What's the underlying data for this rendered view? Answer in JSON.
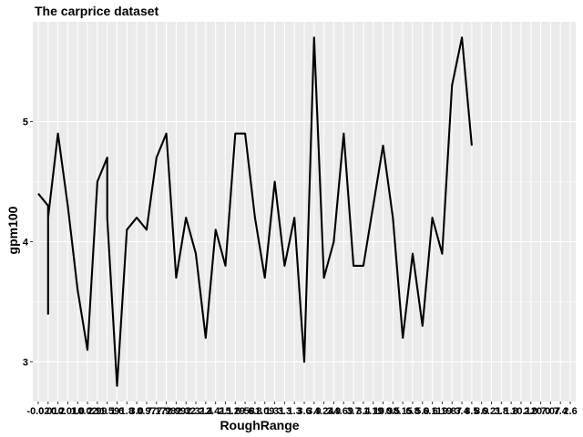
{
  "chart_data": {
    "type": "line",
    "title": "The carprice dataset",
    "xlabel": "RoughRange",
    "ylabel": "gpm100",
    "x_tick_labels": [
      "-0.02",
      "0.01",
      "0.2",
      "0.01",
      "1.0",
      "0.02",
      "2.99",
      "11.59",
      "1.6",
      "1.8",
      "3.0",
      "0.97",
      "7.17",
      "7.98",
      "2.99",
      "2.32",
      "2.31",
      "2.4",
      "2.41",
      "2.1",
      "5.29",
      "6.58",
      "6.8",
      "1.09",
      "1.31",
      "3.3",
      "1.3",
      "3.6",
      "3.9",
      "4.24",
      "3.9",
      "4.69",
      "3.7",
      "3.4",
      "1.19",
      "10.9",
      "0.5",
      "8.15",
      "6.8",
      "5.0",
      "6.11",
      "6.19",
      "9.87",
      "3.4",
      "8.5",
      "8.9",
      "6.21",
      "3.8",
      "1.8",
      "10.1",
      "2.0",
      "20.0",
      "7.07",
      "7.4",
      "2.6"
    ],
    "x": [
      -0.02,
      0.01,
      0.2,
      0.01,
      1.0,
      0.02,
      2.99,
      11.59,
      1.6,
      1.8,
      3.0,
      0.97,
      7.17,
      7.98,
      2.99,
      2.32,
      2.31,
      2.4,
      2.41,
      2.1,
      5.29,
      6.58,
      6.8,
      1.09,
      1.31,
      3.3,
      1.3,
      3.6,
      3.9,
      4.24,
      3.9,
      4.69,
      3.7,
      3.4,
      1.19,
      10.9,
      0.5,
      8.15,
      6.8,
      5.0,
      6.11,
      6.19,
      9.87,
      3.4,
      8.5,
      8.9,
      6.21,
      3.8,
      1.8,
      10.1,
      2.0,
      20.0,
      7.07,
      7.4,
      2.6
    ],
    "points": [
      {
        "x_index": 0,
        "y": 4.4
      },
      {
        "x_index": 1,
        "y": 4.3
      },
      {
        "x_index": 1,
        "y": 3.4
      },
      {
        "x_index": 1,
        "y": 4.2
      },
      {
        "x_index": 2,
        "y": 4.9
      },
      {
        "x_index": 3,
        "y": 4.3
      },
      {
        "x_index": 4,
        "y": 3.6
      },
      {
        "x_index": 5,
        "y": 3.1
      },
      {
        "x_index": 6,
        "y": 4.5
      },
      {
        "x_index": 7,
        "y": 4.7
      },
      {
        "x_index": 7,
        "y": 4.2
      },
      {
        "x_index": 8,
        "y": 2.8
      },
      {
        "x_index": 9,
        "y": 4.1
      },
      {
        "x_index": 10,
        "y": 4.2
      },
      {
        "x_index": 11,
        "y": 4.1
      },
      {
        "x_index": 12,
        "y": 4.7
      },
      {
        "x_index": 13,
        "y": 4.9
      },
      {
        "x_index": 14,
        "y": 3.7
      },
      {
        "x_index": 15,
        "y": 4.2
      },
      {
        "x_index": 16,
        "y": 3.9
      },
      {
        "x_index": 17,
        "y": 3.2
      },
      {
        "x_index": 18,
        "y": 4.1
      },
      {
        "x_index": 19,
        "y": 3.8
      },
      {
        "x_index": 20,
        "y": 4.9
      },
      {
        "x_index": 21,
        "y": 4.9
      },
      {
        "x_index": 22,
        "y": 4.2
      },
      {
        "x_index": 23,
        "y": 3.7
      },
      {
        "x_index": 24,
        "y": 4.5
      },
      {
        "x_index": 25,
        "y": 3.8
      },
      {
        "x_index": 26,
        "y": 4.2
      },
      {
        "x_index": 27,
        "y": 3.0
      },
      {
        "x_index": 28,
        "y": 5.7
      },
      {
        "x_index": 29,
        "y": 3.7
      },
      {
        "x_index": 30,
        "y": 4.0
      },
      {
        "x_index": 31,
        "y": 4.9
      },
      {
        "x_index": 32,
        "y": 3.8
      },
      {
        "x_index": 33,
        "y": 3.8
      },
      {
        "x_index": 34,
        "y": 4.3
      },
      {
        "x_index": 35,
        "y": 4.8
      },
      {
        "x_index": 36,
        "y": 4.2
      },
      {
        "x_index": 37,
        "y": 3.2
      },
      {
        "x_index": 38,
        "y": 3.9
      },
      {
        "x_index": 39,
        "y": 3.3
      },
      {
        "x_index": 40,
        "y": 4.2
      },
      {
        "x_index": 41,
        "y": 3.9
      },
      {
        "x_index": 42,
        "y": 5.3
      },
      {
        "x_index": 43,
        "y": 5.7
      },
      {
        "x_index": 44,
        "y": 4.8
      }
    ],
    "y_ticks": [
      3,
      4,
      5
    ],
    "ylim": [
      2.67,
      5.83
    ],
    "grid": true,
    "legend": "none",
    "colors": {
      "panel": "#EBEBEB",
      "grid_major": "#FFFFFF",
      "line": "#000000"
    }
  }
}
